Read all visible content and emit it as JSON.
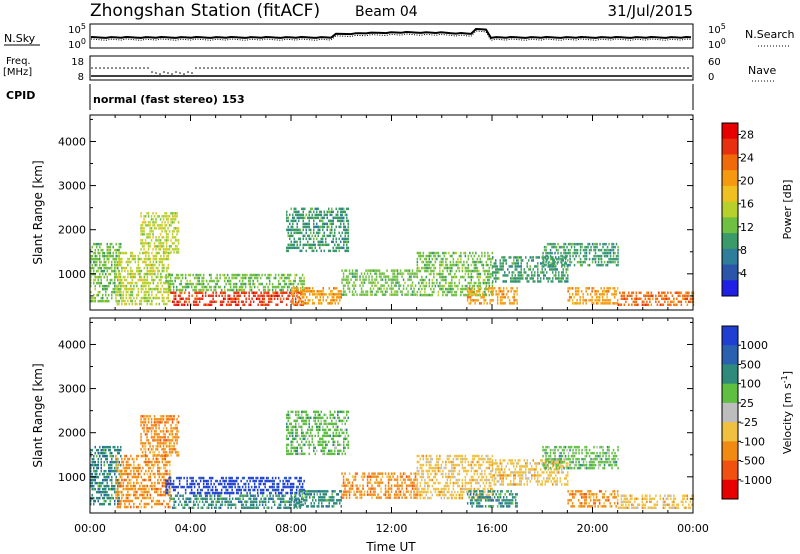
{
  "header": {
    "station": "Zhongshan Station (fitACF)",
    "beam": "Beam 04",
    "date": "31/Jul/2015"
  },
  "strips": {
    "nsky": {
      "label": "N.Sky",
      "top_tick": "10^5",
      "bottom_tick": "10^0"
    },
    "nsearch": {
      "label": "N.Search",
      "top_tick": "10^5",
      "bottom_tick": "10^0"
    },
    "freq": {
      "label_1": "Freq.",
      "label_2": "[MHz]",
      "top_tick": "18",
      "bottom_tick": "8"
    },
    "nave": {
      "label": "Nave",
      "top_tick": "60",
      "bottom_tick": "0"
    },
    "cpid": {
      "label": "CPID",
      "mode": "normal (fast stereo) 153"
    }
  },
  "chart_data": [
    {
      "type": "heatmap",
      "name": "Power",
      "ylabel": "Slant Range [km]",
      "xlabel": "",
      "x_ticks": [
        "00:00",
        "04:00",
        "08:00",
        "12:00",
        "16:00",
        "20:00",
        "00:00"
      ],
      "y_ticks": [
        1000,
        2000,
        3000,
        4000
      ],
      "xlim_hours": [
        0,
        24
      ],
      "ylim_km": [
        180,
        4600
      ],
      "colorbar": {
        "label": "Power [dB]",
        "ticks": [
          "4",
          "8",
          "12",
          "16",
          "20",
          "24",
          "28"
        ],
        "range": [
          0,
          30
        ],
        "colors": [
          "#1f1fe6",
          "#2a55a8",
          "#2e7d9a",
          "#3a9a6a",
          "#6fbf40",
          "#b8d02c",
          "#f0c020",
          "#f59a10",
          "#f06a0a",
          "#e63010",
          "#e60000"
        ]
      },
      "regions": [
        {
          "t0": 0.0,
          "t1": 1.2,
          "r0": 400,
          "r1": 1700,
          "value": 11
        },
        {
          "t0": 1.0,
          "t1": 3.2,
          "r0": 300,
          "r1": 1500,
          "value": 14
        },
        {
          "t0": 2.0,
          "t1": 3.5,
          "r0": 1500,
          "r1": 2400,
          "value": 14
        },
        {
          "t0": 3.0,
          "t1": 8.5,
          "r0": 600,
          "r1": 1000,
          "value": 13
        },
        {
          "t0": 3.2,
          "t1": 8.5,
          "r0": 300,
          "r1": 600,
          "value": 26
        },
        {
          "t0": 8.0,
          "t1": 10.0,
          "r0": 350,
          "r1": 700,
          "value": 20
        },
        {
          "t0": 7.8,
          "t1": 10.3,
          "r0": 1500,
          "r1": 2500,
          "value": 8
        },
        {
          "t0": 10.0,
          "t1": 13.0,
          "r0": 500,
          "r1": 1100,
          "value": 12
        },
        {
          "t0": 13.0,
          "t1": 16.0,
          "r0": 500,
          "r1": 1500,
          "value": 11
        },
        {
          "t0": 15.0,
          "t1": 17.0,
          "r0": 300,
          "r1": 700,
          "value": 22
        },
        {
          "t0": 16.0,
          "t1": 19.0,
          "r0": 800,
          "r1": 1400,
          "value": 8
        },
        {
          "t0": 18.0,
          "t1": 21.0,
          "r0": 1200,
          "r1": 1700,
          "value": 8
        },
        {
          "t0": 19.0,
          "t1": 21.0,
          "r0": 300,
          "r1": 700,
          "value": 22
        },
        {
          "t0": 21.0,
          "t1": 24.0,
          "r0": 300,
          "r1": 600,
          "value": 25
        }
      ]
    },
    {
      "type": "heatmap",
      "name": "Velocity",
      "ylabel": "Slant Range [km]",
      "xlabel": "Time UT",
      "x_ticks": [
        "00:00",
        "04:00",
        "08:00",
        "12:00",
        "16:00",
        "20:00",
        "00:00"
      ],
      "y_ticks": [
        1000,
        2000,
        3000,
        4000
      ],
      "xlim_hours": [
        0,
        24
      ],
      "ylim_km": [
        180,
        4600
      ],
      "colorbar": {
        "label": "Velocity [m s^-1]",
        "ticks": [
          "1000",
          "500",
          "100",
          "25",
          "-25",
          "-100",
          "-500",
          "-1000"
        ],
        "colors": [
          "#1f3fd0",
          "#2a60b0",
          "#2e8a7a",
          "#5fbf40",
          "#bdbdbd",
          "#f0c040",
          "#f08a10",
          "#f05010",
          "#e60000"
        ]
      },
      "regions": [
        {
          "t0": 0.0,
          "t1": 1.2,
          "r0": 400,
          "r1": 1700,
          "value": "100"
        },
        {
          "t0": 1.0,
          "t1": 3.2,
          "r0": 300,
          "r1": 1500,
          "value": "-500"
        },
        {
          "t0": 2.0,
          "t1": 3.5,
          "r0": 1500,
          "r1": 2400,
          "value": "-500"
        },
        {
          "t0": 3.0,
          "t1": 8.5,
          "r0": 600,
          "r1": 1000,
          "value": "1000"
        },
        {
          "t0": 3.2,
          "t1": 8.5,
          "r0": 300,
          "r1": 600,
          "value": "100"
        },
        {
          "t0": 8.0,
          "t1": 10.0,
          "r0": 350,
          "r1": 700,
          "value": "100"
        },
        {
          "t0": 7.8,
          "t1": 10.3,
          "r0": 1500,
          "r1": 2500,
          "value": "25"
        },
        {
          "t0": 10.0,
          "t1": 13.0,
          "r0": 500,
          "r1": 1100,
          "value": "-500"
        },
        {
          "t0": 13.0,
          "t1": 16.0,
          "r0": 500,
          "r1": 1500,
          "value": "-100"
        },
        {
          "t0": 15.0,
          "t1": 17.0,
          "r0": 300,
          "r1": 700,
          "value": "100"
        },
        {
          "t0": 16.0,
          "t1": 19.0,
          "r0": 800,
          "r1": 1400,
          "value": "-100"
        },
        {
          "t0": 18.0,
          "t1": 21.0,
          "r0": 1200,
          "r1": 1700,
          "value": "25"
        },
        {
          "t0": 19.0,
          "t1": 21.0,
          "r0": 300,
          "r1": 700,
          "value": "-500"
        },
        {
          "t0": 21.0,
          "t1": 24.0,
          "r0": 300,
          "r1": 600,
          "value": "-100"
        }
      ]
    }
  ]
}
